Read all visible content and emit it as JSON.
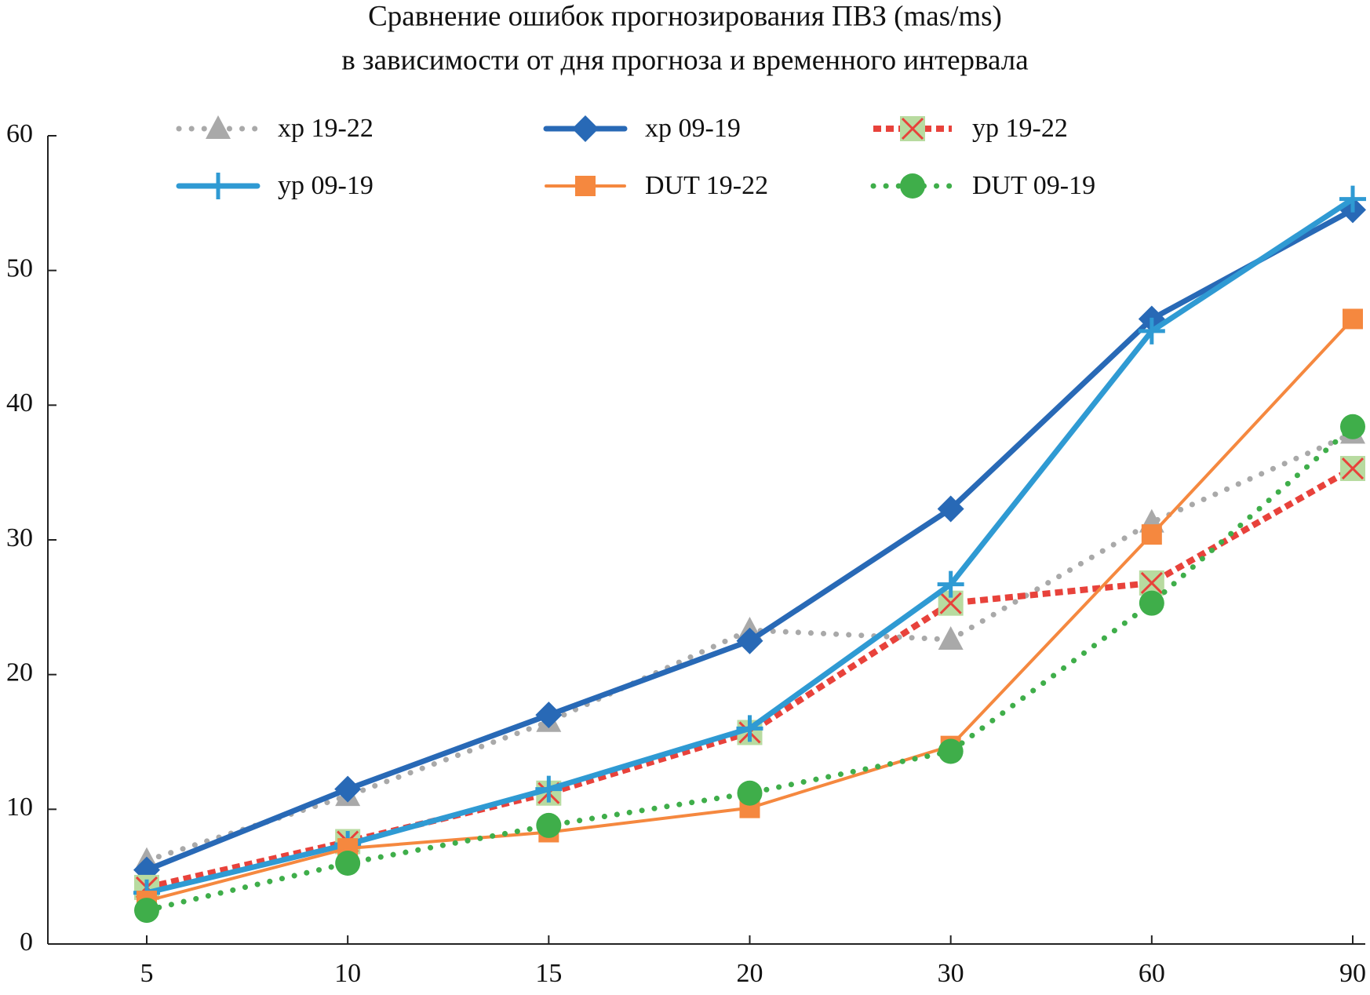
{
  "chart_data": {
    "type": "line",
    "title": [
      "Сравнение ошибок прогнозирования ПВЗ (mas/ms)",
      "в зависимости от дня прогноза и временного интервала"
    ],
    "categories": [
      "5",
      "10",
      "15",
      "20",
      "30",
      "60",
      "90"
    ],
    "ylim": [
      0,
      60
    ],
    "yticks": [
      0,
      10,
      20,
      30,
      40,
      50,
      60
    ],
    "series": [
      {
        "name": "xp 19-22",
        "color": "#a9a9a9",
        "marker": "triangle",
        "dash": "dotted",
        "values": [
          6.2,
          11.0,
          16.5,
          23.3,
          22.6,
          31.3,
          37.9
        ]
      },
      {
        "name": "xp 09-19",
        "color": "#2869b6",
        "marker": "diamond",
        "dash": "solid",
        "values": [
          5.5,
          11.5,
          17.0,
          22.5,
          32.3,
          46.4,
          54.5
        ]
      },
      {
        "name": "yp 19-22",
        "color": "#e8423b",
        "marker": "square-x",
        "marker_fill": "#b8dba0",
        "dash": "dashed",
        "values": [
          4.2,
          7.6,
          11.2,
          15.7,
          25.3,
          26.8,
          35.3
        ]
      },
      {
        "name": "yp 09-19",
        "color": "#2f9ad3",
        "marker": "plus",
        "dash": "solid",
        "values": [
          3.8,
          7.4,
          11.5,
          16.0,
          26.7,
          45.5,
          55.3
        ]
      },
      {
        "name": "DUT 19-22",
        "color": "#f5883f",
        "marker": "square",
        "dash": "thin",
        "values": [
          3.2,
          7.1,
          8.3,
          10.1,
          14.7,
          30.4,
          46.4
        ]
      },
      {
        "name": "DUT 09-19",
        "color": "#3fae4a",
        "marker": "circle",
        "dash": "dotted",
        "values": [
          2.5,
          6.0,
          8.8,
          11.2,
          14.3,
          25.3,
          38.4
        ]
      }
    ]
  }
}
